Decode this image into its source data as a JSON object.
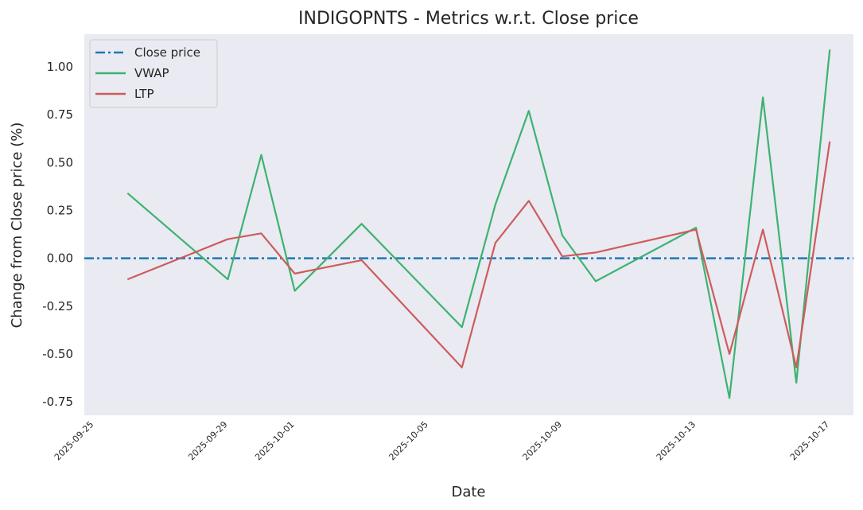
{
  "chart_data": {
    "type": "line",
    "title": "INDIGOPNTS - Metrics w.r.t. Close price",
    "xlabel": "Date",
    "ylabel": "Change from Close price (%)",
    "xlim": [
      "2025-09-24T17:00",
      "2025-10-17T17:00"
    ],
    "ylim": [
      -0.82,
      1.17
    ],
    "x_ticks": [
      "2025-09-25",
      "2025-09-29",
      "2025-10-01",
      "2025-10-05",
      "2025-10-09",
      "2025-10-13",
      "2025-10-17"
    ],
    "y_ticks": [
      "-0.75",
      "-0.50",
      "-0.25",
      "0.00",
      "0.25",
      "0.50",
      "0.75",
      "1.00"
    ],
    "y_tick_values": [
      -0.75,
      -0.5,
      -0.25,
      0.0,
      0.25,
      0.5,
      0.75,
      1.0
    ],
    "grid": false,
    "legend_position": "upper-left",
    "background_color": "#eaeaf2",
    "x": [
      "2025-09-26",
      "2025-09-29",
      "2025-09-30",
      "2025-10-01",
      "2025-10-03",
      "2025-10-06",
      "2025-10-07",
      "2025-10-08",
      "2025-10-09",
      "2025-10-10",
      "2025-10-13",
      "2025-10-14",
      "2025-10-15",
      "2025-10-16",
      "2025-10-17"
    ],
    "series": [
      {
        "name": "Close price",
        "style": "dashdot",
        "color": "#1f77b4",
        "values": [
          0,
          0,
          0,
          0,
          0,
          0,
          0,
          0,
          0,
          0,
          0,
          0,
          0,
          0,
          0
        ],
        "full_width": true
      },
      {
        "name": "VWAP",
        "style": "solid",
        "color": "#3cb371",
        "values": [
          0.34,
          -0.11,
          0.54,
          -0.17,
          0.18,
          -0.36,
          0.28,
          0.77,
          0.12,
          -0.12,
          0.16,
          -0.73,
          0.84,
          -0.65,
          1.09
        ]
      },
      {
        "name": "LTP",
        "style": "solid",
        "color": "#cd5c5c",
        "values": [
          -0.11,
          0.1,
          0.13,
          -0.08,
          -0.01,
          -0.57,
          0.08,
          0.3,
          0.01,
          0.03,
          0.15,
          -0.5,
          0.15,
          -0.57,
          0.61
        ]
      }
    ]
  }
}
